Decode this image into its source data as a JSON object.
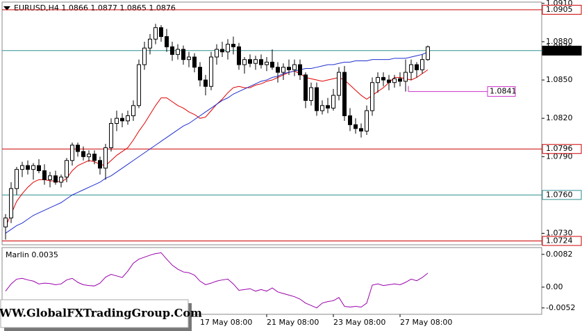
{
  "chart_data": {
    "type": "candlestick",
    "title": "EURUSD,H4  1.0866 1.0877 1.0865 1.0876",
    "x": [
      null,
      null,
      null,
      null,
      null,
      null,
      null,
      null,
      null,
      null,
      null,
      null,
      null,
      null,
      null,
      null,
      null,
      null,
      null,
      null,
      null,
      null,
      null,
      null,
      null,
      null,
      null,
      null,
      null,
      null,
      null,
      null,
      null,
      null,
      null,
      "17 May 08:00",
      null,
      null,
      null,
      null,
      null,
      null,
      null,
      null,
      null,
      null,
      null,
      "21 May 08:00",
      null,
      null,
      null,
      null,
      null,
      null,
      null,
      null,
      null,
      null,
      null,
      "23 May 08:00",
      null,
      null,
      null,
      null,
      null,
      null,
      null,
      null,
      null,
      null,
      null,
      "27 May 08:00",
      null,
      null,
      null,
      null,
      null
    ],
    "candles": [
      [
        1.0735,
        1.0745,
        1.0725,
        1.0742
      ],
      [
        1.0742,
        1.077,
        1.0738,
        1.0765
      ],
      [
        1.0765,
        1.0782,
        1.076,
        1.078
      ],
      [
        1.078,
        1.0786,
        1.0774,
        1.0783
      ],
      [
        1.0783,
        1.0787,
        1.0776,
        1.078
      ],
      [
        1.078,
        1.0785,
        1.0772,
        1.0783
      ],
      [
        1.0783,
        1.0788,
        1.0777,
        1.0779
      ],
      [
        1.0779,
        1.0784,
        1.0768,
        1.0772
      ],
      [
        1.0772,
        1.0778,
        1.0766,
        1.0775
      ],
      [
        1.0775,
        1.0779,
        1.0768,
        1.077
      ],
      [
        1.077,
        1.0776,
        1.0766,
        1.0774
      ],
      [
        1.0774,
        1.0789,
        1.077,
        1.0787
      ],
      [
        1.0787,
        1.0801,
        1.0783,
        1.0799
      ],
      [
        1.0799,
        1.0801,
        1.079,
        1.0794
      ],
      [
        1.0794,
        1.0798,
        1.0787,
        1.079
      ],
      [
        1.079,
        1.0795,
        1.0786,
        1.0792
      ],
      [
        1.0792,
        1.0795,
        1.0784,
        1.0787
      ],
      [
        1.0787,
        1.079,
        1.0776,
        1.0781
      ],
      [
        1.0781,
        1.08,
        1.0772,
        1.0797
      ],
      [
        1.0797,
        1.082,
        1.0794,
        1.0816
      ],
      [
        1.0816,
        1.0826,
        1.081,
        1.082
      ],
      [
        1.082,
        1.0824,
        1.0813,
        1.0818
      ],
      [
        1.0818,
        1.0826,
        1.0815,
        1.0822
      ],
      [
        1.0822,
        1.0834,
        1.0818,
        1.083
      ],
      [
        1.083,
        1.0866,
        1.0828,
        1.0862
      ],
      [
        1.0862,
        1.088,
        1.0858,
        1.0875
      ],
      [
        1.0875,
        1.0886,
        1.087,
        1.0882
      ],
      [
        1.0882,
        1.0894,
        1.0878,
        1.0891
      ],
      [
        1.0891,
        1.0893,
        1.088,
        1.0884
      ],
      [
        1.0884,
        1.089,
        1.0872,
        1.0876
      ],
      [
        1.0876,
        1.088,
        1.0865,
        1.087
      ],
      [
        1.087,
        1.0878,
        1.0866,
        1.0874
      ],
      [
        1.0874,
        1.0877,
        1.0862,
        1.0866
      ],
      [
        1.0866,
        1.0872,
        1.086,
        1.0868
      ],
      [
        1.0868,
        1.0871,
        1.0856,
        1.086
      ],
      [
        1.086,
        1.0864,
        1.0845,
        1.085
      ],
      [
        1.085,
        1.0854,
        1.0838,
        1.0845
      ],
      [
        1.0845,
        1.0872,
        1.0842,
        1.0868
      ],
      [
        1.0868,
        1.0878,
        1.0862,
        1.0874
      ],
      [
        1.0874,
        1.088,
        1.0868,
        1.0872
      ],
      [
        1.0872,
        1.0882,
        1.0866,
        1.0878
      ],
      [
        1.0878,
        1.0884,
        1.087,
        1.0876
      ],
      [
        1.0876,
        1.0879,
        1.0858,
        1.0862
      ],
      [
        1.0862,
        1.0868,
        1.0855,
        1.0866
      ],
      [
        1.0866,
        1.087,
        1.086,
        1.0863
      ],
      [
        1.0863,
        1.0869,
        1.0858,
        1.0866
      ],
      [
        1.0866,
        1.087,
        1.0859,
        1.0862
      ],
      [
        1.0862,
        1.0868,
        1.0857,
        1.0864
      ],
      [
        1.0864,
        1.0874,
        1.0858,
        1.086
      ],
      [
        1.086,
        1.0864,
        1.0848,
        1.0856
      ],
      [
        1.0856,
        1.0863,
        1.085,
        1.086
      ],
      [
        1.086,
        1.0866,
        1.0854,
        1.0858
      ],
      [
        1.0858,
        1.0866,
        1.0853,
        1.0862
      ],
      [
        1.0862,
        1.0866,
        1.085,
        1.0854
      ],
      [
        1.0854,
        1.0856,
        1.0828,
        1.0834
      ],
      [
        1.0834,
        1.0848,
        1.083,
        1.0844
      ],
      [
        1.0844,
        1.0848,
        1.0822,
        1.0826
      ],
      [
        1.0826,
        1.0834,
        1.0823,
        1.083
      ],
      [
        1.083,
        1.0836,
        1.0824,
        1.0828
      ],
      [
        1.0828,
        1.0843,
        1.0826,
        1.0838
      ],
      [
        1.0838,
        1.086,
        1.0834,
        1.0856
      ],
      [
        1.0856,
        1.0861,
        1.0818,
        1.0822
      ],
      [
        1.0822,
        1.0828,
        1.081,
        1.0815
      ],
      [
        1.0815,
        1.082,
        1.0808,
        1.0812
      ],
      [
        1.0812,
        1.0816,
        1.0805,
        1.081
      ],
      [
        1.081,
        1.083,
        1.0807,
        1.0826
      ],
      [
        1.0826,
        1.0852,
        1.0822,
        1.0848
      ],
      [
        1.0848,
        1.0856,
        1.084,
        1.0852
      ],
      [
        1.0852,
        1.0856,
        1.0845,
        1.085
      ],
      [
        1.085,
        1.0854,
        1.0842,
        1.0848
      ],
      [
        1.0848,
        1.0854,
        1.0844,
        1.0851
      ],
      [
        1.0851,
        1.0856,
        1.0845,
        1.0849
      ],
      [
        1.0849,
        1.0866,
        1.0841,
        1.0856
      ],
      [
        1.0856,
        1.0866,
        1.085,
        1.0862
      ],
      [
        1.0862,
        1.0864,
        1.0852,
        1.0858
      ],
      [
        1.0858,
        1.087,
        1.0855,
        1.0866
      ],
      [
        1.0866,
        1.0877,
        1.0865,
        1.0876
      ]
    ],
    "lines": [
      {
        "color": "#e00000",
        "values": [
          1.0735,
          1.0745,
          1.0755,
          1.0761,
          1.0766,
          1.077,
          1.0772,
          1.0772,
          1.0771,
          1.0771,
          1.077,
          1.0773,
          1.0779,
          1.0783,
          1.0785,
          1.0787,
          1.0786,
          1.0784,
          1.0783,
          1.0787,
          1.0791,
          1.0794,
          1.0797,
          1.0803,
          1.081,
          1.0816,
          1.0823,
          1.083,
          1.0836,
          1.0836,
          1.0833,
          1.083,
          1.0828,
          1.0825,
          1.0823,
          1.082,
          1.0821,
          1.0826,
          1.0831,
          1.0835,
          1.084,
          1.0844,
          1.0845,
          1.0844,
          1.0844,
          1.0846,
          1.0847,
          1.0849,
          1.085,
          1.0852,
          1.0854,
          1.0856,
          1.0857,
          1.0855,
          1.0852,
          1.0851,
          1.085,
          1.0849,
          1.085,
          1.0851,
          1.0852,
          1.085,
          1.0846,
          1.0842,
          1.0838,
          1.0835,
          1.0838,
          1.0841,
          1.0844,
          1.0848,
          1.0852,
          1.0852,
          1.0851,
          1.085,
          1.0852,
          1.0855,
          1.0858
        ]
      },
      {
        "color": "#1f2fd0",
        "values": [
          1.073,
          1.0733,
          1.0736,
          1.0738,
          1.0741,
          1.0744,
          1.0746,
          1.0748,
          1.075,
          1.0752,
          1.0754,
          1.0757,
          1.076,
          1.0762,
          1.0764,
          1.0766,
          1.0768,
          1.077,
          1.0773,
          1.0775,
          1.0778,
          1.0781,
          1.0784,
          1.0787,
          1.079,
          1.0793,
          1.0796,
          1.0799,
          1.0802,
          1.0805,
          1.0808,
          1.0811,
          1.0814,
          1.0816,
          1.0819,
          1.0822,
          1.0825,
          1.0828,
          1.0831,
          1.0834,
          1.0836,
          1.0839,
          1.0841,
          1.0843,
          1.0845,
          1.0847,
          1.0849,
          1.085,
          1.0852,
          1.0853,
          1.0855,
          1.0856,
          1.0857,
          1.0858,
          1.0859,
          1.0859,
          1.086,
          1.0861,
          1.0862,
          1.0862,
          1.0863,
          1.0864,
          1.0864,
          1.0865,
          1.0865,
          1.0865,
          1.0866,
          1.0866,
          1.0866,
          1.0866,
          1.0867,
          1.0867,
          1.0867,
          1.0868,
          1.0869,
          1.087,
          1.0872
        ]
      }
    ],
    "ylim": [
      1.0721,
      1.0911
    ],
    "yticks": [
      {
        "value": 1.091,
        "label": "1.0910"
      },
      {
        "value": 1.088,
        "label": "1.0880"
      },
      {
        "value": 1.085,
        "label": "1.0850"
      },
      {
        "value": 1.082,
        "label": "1.0820"
      },
      {
        "value": 1.079,
        "label": "1.0790"
      },
      {
        "value": 1.073,
        "label": "1.0730"
      }
    ],
    "bid": 1.0876,
    "levels": [
      {
        "value": 1.0905,
        "color": "#cc0000"
      },
      {
        "value": 1.0873,
        "color": "#2f8f8f",
        "current": true
      },
      {
        "value": 1.0796,
        "color": "#cc0000"
      },
      {
        "value": 1.076,
        "label": "1.0760",
        "color": "#2f8f8f"
      },
      {
        "value": 1.0724,
        "color": "#cc0000"
      }
    ],
    "annotation": {
      "value": 1.0841,
      "color": "#cc33cc"
    },
    "indicator": {
      "label": "Marlin 0.0035",
      "color": "#9900aa",
      "values": [
        -0.001,
        0.0008,
        0.002,
        0.0022,
        0.0018,
        0.0015,
        0.0008,
        0.001,
        0.0009,
        0.0006,
        0.0008,
        0.0018,
        0.0022,
        0.0012,
        0.0006,
        0.0004,
        0.0003,
        0.001,
        0.0025,
        0.0032,
        0.0028,
        0.0024,
        0.004,
        0.006,
        0.007,
        0.0075,
        0.008,
        0.0084,
        0.0086,
        0.007,
        0.0055,
        0.0045,
        0.0038,
        0.0036,
        0.003,
        0.0015,
        0.0006,
        0.001,
        0.0015,
        0.0018,
        0.002,
        0.0008,
        -0.0008,
        -0.0006,
        -0.0004,
        -0.001,
        -0.0006,
        -0.001,
        -0.0002,
        -0.0012,
        -0.0016,
        -0.002,
        -0.0024,
        -0.003,
        -0.004,
        -0.0046,
        -0.0052,
        -0.004,
        -0.0036,
        -0.0034,
        -0.0026,
        -0.0048,
        -0.005,
        -0.0048,
        -0.005,
        -0.004,
        0.0005,
        0.0008,
        0.0004,
        0.0006,
        0.0008,
        0.0006,
        0.0012,
        0.002,
        0.0016,
        0.0024,
        0.0035
      ],
      "ylim": [
        -0.0068,
        0.0099
      ],
      "yticks": [
        0.0082,
        {
          "value": 0,
          "label": "0.00"
        },
        -0.0052
      ]
    }
  },
  "watermark": "WWW.GlobalFXTradingGroup.Com"
}
